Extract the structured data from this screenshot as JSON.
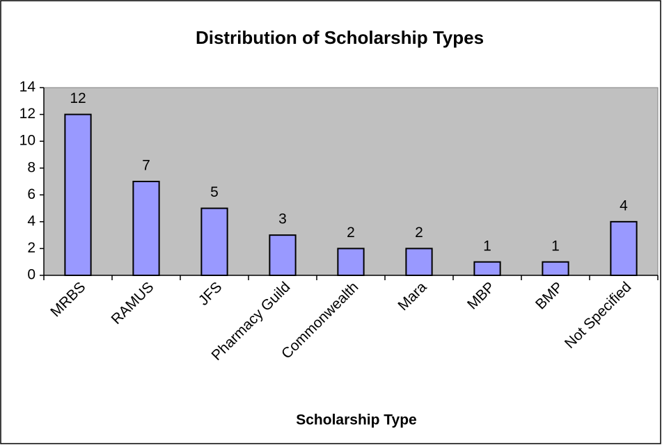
{
  "chart_data": {
    "type": "bar",
    "title": "Distribution of Scholarship Types",
    "x_label": "Scholarship Type",
    "categories": [
      "MRBS",
      "RAMUS",
      "JFS",
      "Pharmacy Guild",
      "Commonwealth",
      "Mara",
      "MBP",
      "BMP",
      "Not Specified"
    ],
    "values": [
      12,
      7,
      5,
      3,
      2,
      2,
      1,
      1,
      4
    ],
    "color": "#9999ff",
    "ylim": [
      0,
      14
    ],
    "yticks": [
      0,
      2,
      4,
      6,
      8,
      10,
      12,
      14
    ],
    "grid": false
  }
}
